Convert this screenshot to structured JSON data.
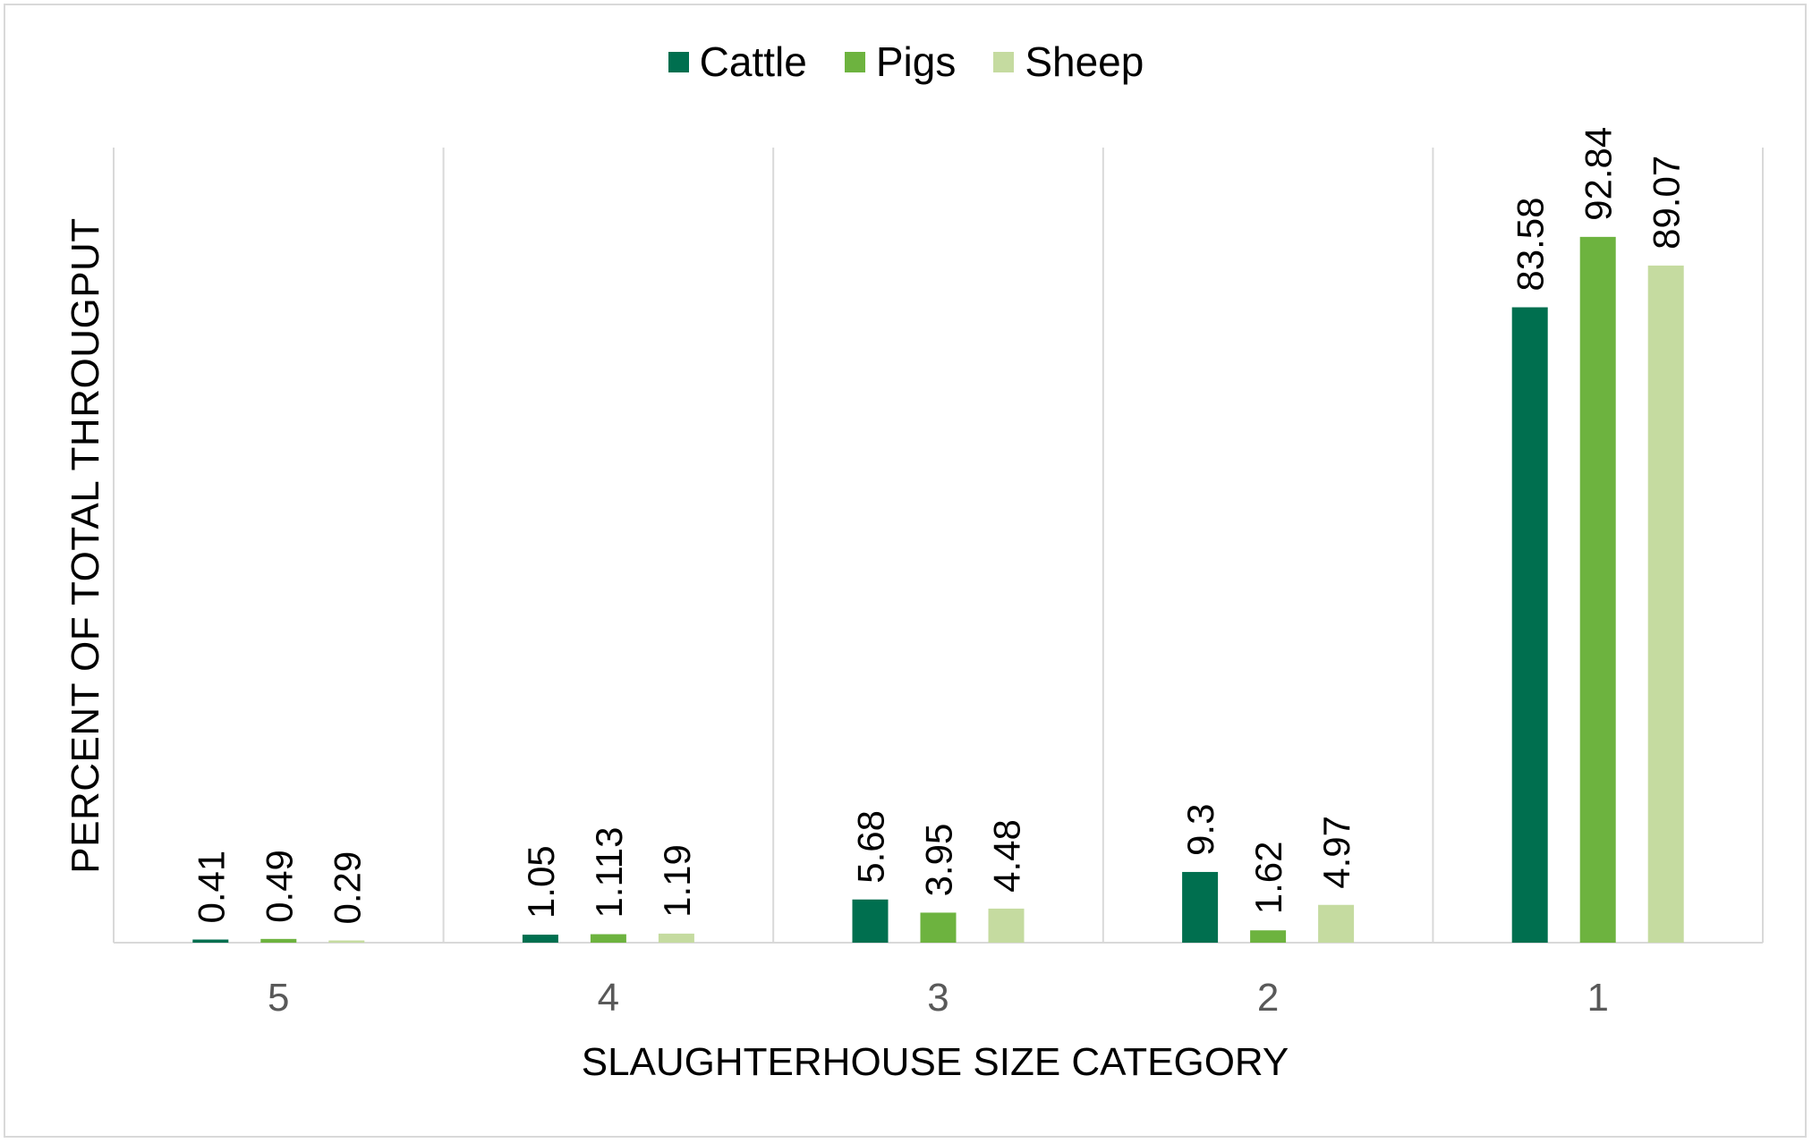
{
  "chart_data": {
    "type": "bar",
    "categories": [
      "5",
      "4",
      "3",
      "2",
      "1"
    ],
    "series": [
      {
        "name": "Cattle",
        "values": [
          0.41,
          1.05,
          5.68,
          9.3,
          83.58
        ],
        "labels": [
          "0.41",
          "1.05",
          "5.68",
          "9.3",
          "83.58"
        ],
        "color": "#006f4f"
      },
      {
        "name": "Pigs",
        "values": [
          0.49,
          1.113,
          3.95,
          1.62,
          92.84
        ],
        "labels": [
          "0.49",
          "1.113",
          "3.95",
          "1.62",
          "92.84"
        ],
        "color": "#6db33f"
      },
      {
        "name": "Sheep",
        "values": [
          0.29,
          1.19,
          4.48,
          4.97,
          89.07
        ],
        "labels": [
          "0.29",
          "1.19",
          "4.48",
          "4.97",
          "89.07"
        ],
        "color": "#c5dba0"
      }
    ],
    "xlabel": "SLAUGHTERHOUSE SIZE CATEGORY",
    "ylabel": "PERCENT OF TOTAL THROUGPUT",
    "ylim": [
      0,
      100
    ],
    "y_axis_ticks_shown": false,
    "legend_position": "top-center",
    "grid": "vertical category separators"
  }
}
